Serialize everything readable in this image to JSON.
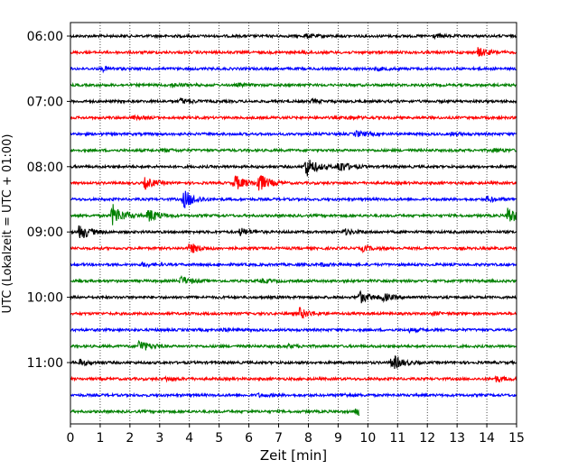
{
  "chart_data": {
    "type": "line",
    "title": "",
    "xlabel": "Zeit  [min]",
    "ylabel": "UTC (Lokalzeit = UTC + 01:00)",
    "xlim": [
      0,
      15
    ],
    "x_ticks": [
      "0",
      "1",
      "2",
      "3",
      "4",
      "5",
      "6",
      "7",
      "8",
      "9",
      "10",
      "11",
      "12",
      "13",
      "14",
      "15"
    ],
    "y_ticks": [
      {
        "label": "06:00",
        "row": 0
      },
      {
        "label": "07:00",
        "row": 4
      },
      {
        "label": "08:00",
        "row": 8
      },
      {
        "label": "09:00",
        "row": 12
      },
      {
        "label": "10:00",
        "row": 16
      },
      {
        "label": "11:00",
        "row": 20
      }
    ],
    "grid": "vertical-dotted",
    "row_minutes": 15,
    "trace_colors": [
      "#000000",
      "#ff0000",
      "#0000ff",
      "#008000"
    ],
    "traces": [
      {
        "start": "06:00",
        "end_min": 15,
        "events": [
          {
            "t": 7.9,
            "amp": 2
          },
          {
            "t": 12.2,
            "amp": 1.5
          }
        ]
      },
      {
        "start": "06:15",
        "end_min": 15,
        "events": [
          {
            "t": 7.8,
            "amp": 1.5
          },
          {
            "t": 13.7,
            "amp": 5
          }
        ]
      },
      {
        "start": "06:30",
        "end_min": 15,
        "events": [
          {
            "t": 1.1,
            "amp": 2
          },
          {
            "t": 10.3,
            "amp": 1.5
          }
        ]
      },
      {
        "start": "06:45",
        "end_min": 15,
        "events": [
          {
            "t": 3.4,
            "amp": 2
          },
          {
            "t": 5.6,
            "amp": 1.5
          }
        ]
      },
      {
        "start": "07:00",
        "end_min": 15,
        "events": [
          {
            "t": 3.7,
            "amp": 3
          },
          {
            "t": 8.1,
            "amp": 1.5
          }
        ]
      },
      {
        "start": "07:15",
        "end_min": 15,
        "events": [
          {
            "t": 2.1,
            "amp": 1.5
          },
          {
            "t": 9.3,
            "amp": 1.5
          }
        ]
      },
      {
        "start": "07:30",
        "end_min": 15,
        "events": [
          {
            "t": 9.6,
            "amp": 3
          },
          {
            "t": 12.8,
            "amp": 1.5
          }
        ]
      },
      {
        "start": "07:45",
        "end_min": 15,
        "events": [
          {
            "t": 3.1,
            "amp": 1.5
          },
          {
            "t": 14.2,
            "amp": 2
          }
        ]
      },
      {
        "start": "08:00",
        "end_min": 15,
        "events": [
          {
            "t": 7.9,
            "amp": 12
          },
          {
            "t": 9.0,
            "amp": 7
          }
        ]
      },
      {
        "start": "08:15",
        "end_min": 15,
        "events": [
          {
            "t": 2.5,
            "amp": 6
          },
          {
            "t": 5.5,
            "amp": 9
          },
          {
            "t": 6.3,
            "amp": 11
          }
        ]
      },
      {
        "start": "08:30",
        "end_min": 15,
        "events": [
          {
            "t": 3.8,
            "amp": 11
          },
          {
            "t": 14.0,
            "amp": 3
          }
        ]
      },
      {
        "start": "08:45",
        "end_min": 15,
        "events": [
          {
            "t": 1.4,
            "amp": 13
          },
          {
            "t": 2.6,
            "amp": 8
          },
          {
            "t": 14.7,
            "amp": 10
          }
        ]
      },
      {
        "start": "09:00",
        "end_min": 15,
        "events": [
          {
            "t": 0.3,
            "amp": 9
          },
          {
            "t": 5.7,
            "amp": 4
          },
          {
            "t": 9.2,
            "amp": 3
          }
        ]
      },
      {
        "start": "09:15",
        "end_min": 15,
        "events": [
          {
            "t": 4.0,
            "amp": 6
          },
          {
            "t": 9.8,
            "amp": 3
          }
        ]
      },
      {
        "start": "09:30",
        "end_min": 15,
        "events": [
          {
            "t": 2.4,
            "amp": 2
          },
          {
            "t": 8.4,
            "amp": 1.5
          }
        ]
      },
      {
        "start": "09:45",
        "end_min": 15,
        "events": [
          {
            "t": 3.7,
            "amp": 5
          },
          {
            "t": 6.4,
            "amp": 2
          }
        ]
      },
      {
        "start": "10:00",
        "end_min": 15,
        "events": [
          {
            "t": 9.7,
            "amp": 7
          },
          {
            "t": 10.5,
            "amp": 4
          }
        ]
      },
      {
        "start": "10:15",
        "end_min": 15,
        "events": [
          {
            "t": 7.7,
            "amp": 6
          },
          {
            "t": 12.2,
            "amp": 1.5
          }
        ]
      },
      {
        "start": "10:30",
        "end_min": 15,
        "events": [
          {
            "t": 5.1,
            "amp": 1.5
          },
          {
            "t": 11.4,
            "amp": 1.5
          }
        ]
      },
      {
        "start": "10:45",
        "end_min": 15,
        "events": [
          {
            "t": 2.3,
            "amp": 7
          },
          {
            "t": 7.3,
            "amp": 1.5
          }
        ]
      },
      {
        "start": "11:00",
        "end_min": 15,
        "events": [
          {
            "t": 0.3,
            "amp": 3
          },
          {
            "t": 10.8,
            "amp": 9
          }
        ]
      },
      {
        "start": "11:15",
        "end_min": 15,
        "events": [
          {
            "t": 3.2,
            "amp": 2
          },
          {
            "t": 14.3,
            "amp": 3
          }
        ]
      },
      {
        "start": "11:30",
        "end_min": 15,
        "events": [
          {
            "t": 6.3,
            "amp": 1.5
          },
          {
            "t": 9.1,
            "amp": 1.5
          }
        ]
      },
      {
        "start": "11:45",
        "end_min": 9.7,
        "events": [
          {
            "t": 9.6,
            "amp": 5
          }
        ]
      }
    ]
  }
}
